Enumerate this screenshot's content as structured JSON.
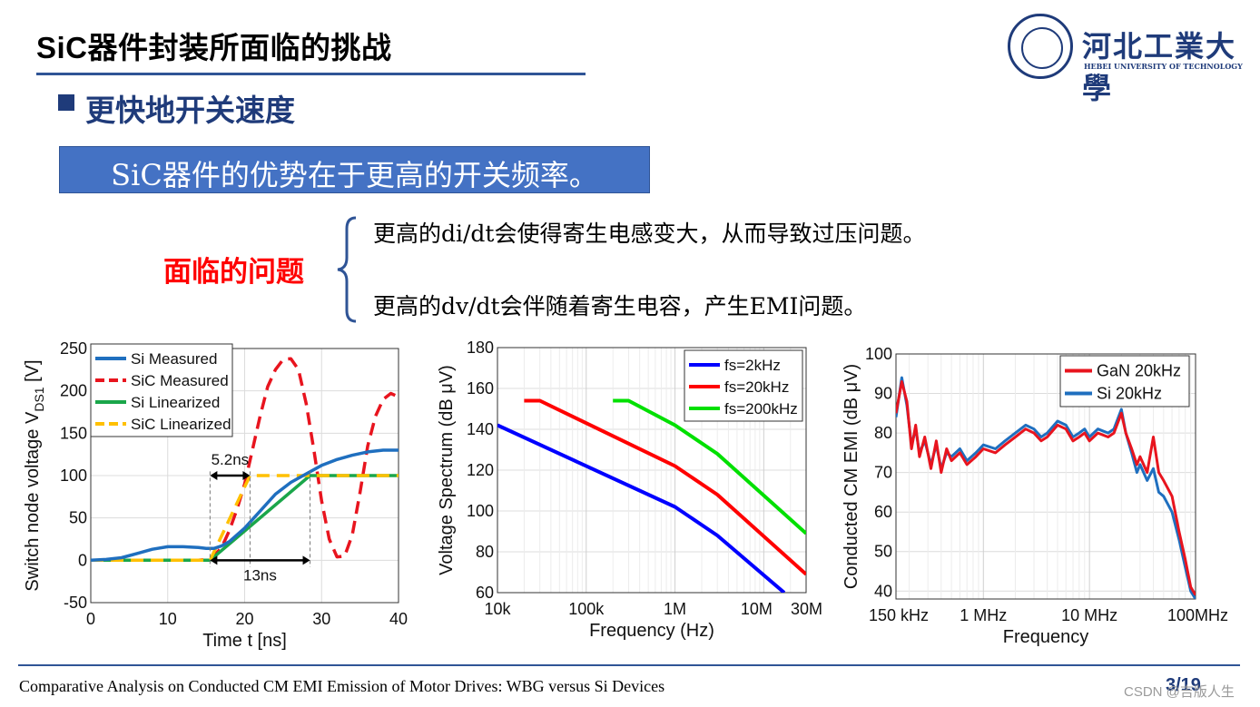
{
  "slide": {
    "title": "SiC器件封装所面临的挑战",
    "logo_cn": "河北工業大學",
    "logo_en": "HEBEI UNIVERSITY OF TECHNOLOGY",
    "bullet": "更快地开关速度",
    "highlight_box": "SiC器件的优势在于更高的开关频率。",
    "problem_label": "面临的问题",
    "problems": [
      "更高的di/dt会使得寄生电感变大，从而导致过压问题。",
      "更高的dv/dt会伴随着寄生电容，产生EMI问题。"
    ],
    "footer": "Comparative Analysis on Conducted CM EMI Emission of Motor Drives: WBG versus Si Devices",
    "page": "3/19",
    "watermark": "CSDN @吉版人生",
    "colors": {
      "title_blue": "#1f3b7a",
      "box_blue": "#4472c4",
      "problem_red": "#ff0000"
    }
  },
  "chart_data": [
    {
      "type": "line",
      "xlabel": "Time t [ns]",
      "ylabel": "Switch node voltage V",
      "ylabel_sub": "DS1",
      "ylabel_unit": "[V]",
      "xlim": [
        0,
        40
      ],
      "ylim": [
        -50,
        250
      ],
      "xticks": [
        "0",
        "10",
        "20",
        "30",
        "40"
      ],
      "yticks": [
        "250",
        "200",
        "150",
        "100",
        "50",
        "0",
        "-50"
      ],
      "grid": true,
      "legend": "top-left",
      "annotations": [
        "5.2ns",
        "13ns"
      ],
      "series": [
        {
          "name": "Si Measured",
          "color": "#1f6fbf",
          "dash": false,
          "x": [
            0,
            2,
            4,
            6,
            8,
            10,
            12,
            14,
            15,
            16,
            17,
            18,
            20,
            22,
            24,
            26,
            28,
            30,
            32,
            34,
            36,
            38,
            40
          ],
          "y": [
            0,
            1,
            3,
            8,
            13,
            16,
            16,
            15,
            14,
            14,
            17,
            22,
            38,
            58,
            78,
            92,
            102,
            112,
            119,
            124,
            128,
            130,
            130
          ]
        },
        {
          "name": "SiC Measured",
          "color": "#e8141e",
          "dash": true,
          "x": [
            0,
            4,
            8,
            12,
            14,
            15,
            16,
            17,
            18,
            19,
            20,
            21,
            22,
            23,
            24,
            25,
            26,
            27,
            28,
            29,
            30,
            31,
            32,
            33,
            34,
            35,
            36,
            37,
            38,
            39,
            40
          ],
          "y": [
            0,
            0,
            0,
            0,
            0,
            1,
            5,
            15,
            35,
            60,
            90,
            130,
            170,
            205,
            225,
            237,
            238,
            225,
            185,
            130,
            70,
            25,
            4,
            5,
            30,
            80,
            135,
            170,
            190,
            197,
            193
          ]
        },
        {
          "name": "Si Linearized",
          "color": "#1aa64a",
          "dash": false,
          "x": [
            0,
            15.5,
            28.5,
            40
          ],
          "y": [
            0,
            0,
            100,
            100
          ]
        },
        {
          "name": "SiC Linearized",
          "color": "#ffc000",
          "dash": true,
          "x": [
            0,
            15.5,
            20.7,
            40
          ],
          "y": [
            0,
            0,
            100,
            100
          ]
        }
      ]
    },
    {
      "type": "line",
      "xlabel": "Frequency (Hz)",
      "ylabel": "Voltage Spectrum (dB μV)",
      "xscale": "log",
      "xlim": [
        10000,
        30000000
      ],
      "ylim": [
        60,
        180
      ],
      "xticks": [
        "10k",
        "100k",
        "1M",
        "10M",
        "30M"
      ],
      "yticks": [
        "180",
        "160",
        "140",
        "120",
        "100",
        "80",
        "60"
      ],
      "grid": true,
      "legend": "top-right",
      "series": [
        {
          "name": "fs=2kHz",
          "color": "#0000ff",
          "x": [
            10000,
            1000000,
            3000000,
            17000000
          ],
          "y": [
            142,
            102,
            88,
            60
          ]
        },
        {
          "name": "fs=20kHz",
          "color": "#ff0000",
          "x": [
            20000,
            30000,
            1000000,
            3000000,
            30000000
          ],
          "y": [
            154,
            154,
            122,
            108,
            69
          ]
        },
        {
          "name": "fs=200kHz",
          "color": "#00e000",
          "x": [
            200000,
            300000,
            1000000,
            3000000,
            30000000
          ],
          "y": [
            154,
            154,
            142,
            128,
            89
          ]
        }
      ]
    },
    {
      "type": "line",
      "xlabel": "Frequency",
      "ylabel": "Conducted CM EMI (dB μV)",
      "xscale": "log",
      "xlim": [
        150000,
        100000000
      ],
      "ylim": [
        38,
        100
      ],
      "xticks": [
        "150 kHz",
        "1 MHz",
        "10 MHz",
        "100MHz"
      ],
      "yticks": [
        "100",
        "90",
        "80",
        "70",
        "60",
        "50",
        "40"
      ],
      "grid": true,
      "legend": "top-right",
      "series": [
        {
          "name": "GaN 20kHz",
          "color": "#e8141e",
          "x": [
            150000,
            170000,
            190000,
            210000,
            230000,
            250000,
            280000,
            320000,
            360000,
            400000,
            450000,
            500000,
            600000,
            700000,
            850000,
            1000000,
            1300000,
            1600000,
            2000000,
            2500000,
            3000000,
            3500000,
            4000000,
            5000000,
            6000000,
            7000000,
            8000000,
            9000000,
            10000000,
            12000000,
            15000000,
            17000000,
            20000000,
            22000000,
            25000000,
            28000000,
            30000000,
            35000000,
            40000000,
            45000000,
            50000000,
            60000000,
            70000000,
            80000000,
            90000000,
            100000000
          ],
          "y": [
            85,
            93,
            88,
            76,
            82,
            74,
            79,
            71,
            78,
            70,
            76,
            73,
            75,
            72,
            74,
            76,
            75,
            77,
            79,
            81,
            80,
            78,
            79,
            82,
            81,
            78,
            79,
            80,
            78,
            80,
            79,
            80,
            85,
            80,
            76,
            72,
            74,
            70,
            79,
            70,
            68,
            64,
            55,
            48,
            41,
            39
          ]
        },
        {
          "name": "Si 20kHz",
          "color": "#1f6fbf",
          "x": [
            150000,
            170000,
            190000,
            210000,
            230000,
            250000,
            280000,
            320000,
            360000,
            400000,
            450000,
            500000,
            600000,
            700000,
            850000,
            1000000,
            1300000,
            1600000,
            2000000,
            2500000,
            3000000,
            3500000,
            4000000,
            5000000,
            6000000,
            7000000,
            8000000,
            9000000,
            10000000,
            12000000,
            15000000,
            17000000,
            20000000,
            22000000,
            25000000,
            28000000,
            30000000,
            35000000,
            40000000,
            45000000,
            50000000,
            60000000,
            70000000,
            80000000,
            90000000,
            100000000
          ],
          "y": [
            84,
            94,
            87,
            77,
            81,
            75,
            78,
            72,
            77,
            71,
            75,
            74,
            76,
            73,
            75,
            77,
            76,
            78,
            80,
            82,
            81,
            79,
            80,
            83,
            82,
            79,
            80,
            81,
            79,
            81,
            80,
            81,
            86,
            80,
            75,
            70,
            72,
            68,
            71,
            65,
            64,
            60,
            53,
            46,
            40,
            38
          ]
        }
      ]
    }
  ]
}
